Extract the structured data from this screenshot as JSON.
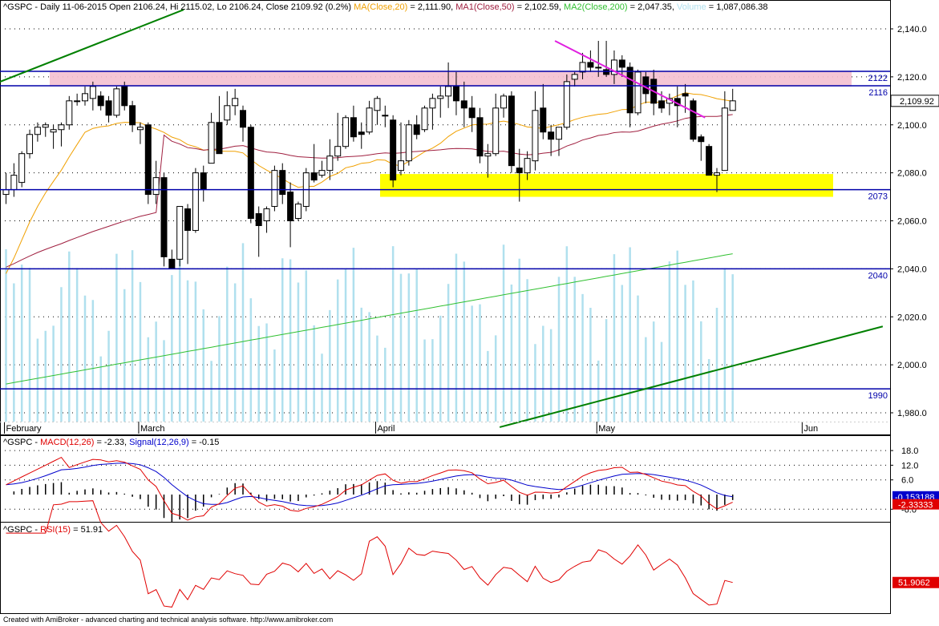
{
  "main_header": {
    "prefix": "^GSPC - Daily 11-06-2015 Open 2106.24, Hi 2115.02, Lo 2106.24, Close 2109.92 (0.2%)",
    "ma20": "MA(Close,20)",
    "ma20_val": "= 2,111.90,",
    "ma50": "MA1(Close,50)",
    "ma50_val": "= 2,102.59,",
    "ma200": "MA2(Close,200)",
    "ma200_val": "= 2,047.35,",
    "volume": "Volume",
    "volume_val": "= 1,087,086.38"
  },
  "macd_header": {
    "prefix": "^GSPC - ",
    "macd": "MACD(12,26)",
    "macd_val": "= -2.33,",
    "signal": "Signal(12,26,9)",
    "signal_val": "= -0.15"
  },
  "rsi_header": {
    "prefix": "^GSPC - ",
    "rsi": "RSI(15)",
    "rsi_val": "= 51.91"
  },
  "footer": "Created with AmiBroker - advanced charting and technical analysis software. http://www.amibroker.com",
  "colors": {
    "ma20": "#f0a000",
    "ma50": "#a02040",
    "ma200": "#30c030",
    "volume": "#b0e0ee",
    "macd": "#e00000",
    "signal": "#0000cc",
    "rsi": "#e00000",
    "level": "#0000aa",
    "trend": "#008000",
    "downtrend": "#e020e0",
    "resistance_zone": "#f4c0d0",
    "support_zone": "#ffff00"
  },
  "chart_data": [
    {
      "type": "candlestick",
      "title": "^GSPC - Daily 11-06-2015",
      "ylim": [
        1970,
        2150
      ],
      "yticks": [
        "2,140.0",
        "2,120.0",
        "2,100.0",
        "2,080.0",
        "2,060.0",
        "2,040.0",
        "2,020.0",
        "2,000.0",
        "1,980.0"
      ],
      "last_price_label": "2,109.92",
      "x_month_labels": [
        {
          "label": "February",
          "index": 0
        },
        {
          "label": "March",
          "index": 17
        },
        {
          "label": "April",
          "index": 47
        },
        {
          "label": "May",
          "index": 75
        },
        {
          "label": "Jun",
          "index": 101
        }
      ],
      "candles": [
        {
          "o": 2071,
          "h": 2080,
          "l": 2067,
          "c": 2073
        },
        {
          "o": 2073,
          "h": 2084,
          "l": 2070,
          "c": 2079
        },
        {
          "o": 2076,
          "h": 2089,
          "l": 2074,
          "c": 2088
        },
        {
          "o": 2088,
          "h": 2098,
          "l": 2086,
          "c": 2096
        },
        {
          "o": 2096,
          "h": 2101,
          "l": 2093,
          "c": 2099
        },
        {
          "o": 2099,
          "h": 2101,
          "l": 2095,
          "c": 2100
        },
        {
          "o": 2097,
          "h": 2100,
          "l": 2090,
          "c": 2098
        },
        {
          "o": 2098,
          "h": 2101,
          "l": 2091,
          "c": 2100
        },
        {
          "o": 2100,
          "h": 2112,
          "l": 2098,
          "c": 2110
        },
        {
          "o": 2110,
          "h": 2113,
          "l": 2108,
          "c": 2110
        },
        {
          "o": 2110,
          "h": 2116,
          "l": 2108,
          "c": 2113
        },
        {
          "o": 2111,
          "h": 2118,
          "l": 2106,
          "c": 2116
        },
        {
          "o": 2112,
          "h": 2114,
          "l": 2106,
          "c": 2108
        },
        {
          "o": 2110,
          "h": 2112,
          "l": 2101,
          "c": 2104
        },
        {
          "o": 2104,
          "h": 2116,
          "l": 2103,
          "c": 2115
        },
        {
          "o": 2116,
          "h": 2118,
          "l": 2106,
          "c": 2108
        },
        {
          "o": 2108,
          "h": 2110,
          "l": 2097,
          "c": 2100
        },
        {
          "o": 2098,
          "h": 2101,
          "l": 2092,
          "c": 2099
        },
        {
          "o": 2100,
          "h": 2101,
          "l": 2067,
          "c": 2071
        },
        {
          "o": 2071,
          "h": 2085,
          "l": 2067,
          "c": 2078
        },
        {
          "o": 2078,
          "h": 2080,
          "l": 2041,
          "c": 2045
        },
        {
          "o": 2044,
          "h": 2048,
          "l": 2040,
          "c": 2040
        },
        {
          "o": 2044,
          "h": 2066,
          "l": 2041,
          "c": 2066
        },
        {
          "o": 2065,
          "h": 2067,
          "l": 2042,
          "c": 2056
        },
        {
          "o": 2056,
          "h": 2082,
          "l": 2055,
          "c": 2080
        },
        {
          "o": 2080,
          "h": 2083,
          "l": 2068,
          "c": 2073
        },
        {
          "o": 2084,
          "h": 2105,
          "l": 2084,
          "c": 2101
        },
        {
          "o": 2101,
          "h": 2112,
          "l": 2088,
          "c": 2088
        },
        {
          "o": 2102,
          "h": 2114,
          "l": 2100,
          "c": 2108
        },
        {
          "o": 2108,
          "h": 2115,
          "l": 2104,
          "c": 2111
        },
        {
          "o": 2106,
          "h": 2108,
          "l": 2093,
          "c": 2099
        },
        {
          "o": 2099,
          "h": 2100,
          "l": 2059,
          "c": 2061
        },
        {
          "o": 2063,
          "h": 2066,
          "l": 2045,
          "c": 2058
        },
        {
          "o": 2060,
          "h": 2066,
          "l": 2055,
          "c": 2065
        },
        {
          "o": 2066,
          "h": 2083,
          "l": 2064,
          "c": 2081
        },
        {
          "o": 2081,
          "h": 2084,
          "l": 2067,
          "c": 2071
        },
        {
          "o": 2072,
          "h": 2076,
          "l": 2049,
          "c": 2060
        },
        {
          "o": 2061,
          "h": 2068,
          "l": 2060,
          "c": 2067
        },
        {
          "o": 2066,
          "h": 2082,
          "l": 2064,
          "c": 2080
        },
        {
          "o": 2080,
          "h": 2092,
          "l": 2076,
          "c": 2077
        },
        {
          "o": 2079,
          "h": 2085,
          "l": 2078,
          "c": 2081
        },
        {
          "o": 2081,
          "h": 2094,
          "l": 2077,
          "c": 2087
        },
        {
          "o": 2087,
          "h": 2105,
          "l": 2085,
          "c": 2091
        },
        {
          "o": 2091,
          "h": 2104,
          "l": 2090,
          "c": 2103
        },
        {
          "o": 2103,
          "h": 2108,
          "l": 2093,
          "c": 2095
        },
        {
          "o": 2097,
          "h": 2101,
          "l": 2090,
          "c": 2096
        },
        {
          "o": 2097,
          "h": 2110,
          "l": 2096,
          "c": 2107
        },
        {
          "o": 2106,
          "h": 2112,
          "l": 2100,
          "c": 2111
        },
        {
          "o": 2104,
          "h": 2108,
          "l": 2099,
          "c": 2104
        },
        {
          "o": 2102,
          "h": 2104,
          "l": 2074,
          "c": 2077
        },
        {
          "o": 2081,
          "h": 2101,
          "l": 2079,
          "c": 2085
        },
        {
          "o": 2085,
          "h": 2102,
          "l": 2083,
          "c": 2100
        },
        {
          "o": 2100,
          "h": 2104,
          "l": 2094,
          "c": 2096
        },
        {
          "o": 2098,
          "h": 2108,
          "l": 2097,
          "c": 2107
        },
        {
          "o": 2107,
          "h": 2113,
          "l": 2098,
          "c": 2111
        },
        {
          "o": 2111,
          "h": 2116,
          "l": 2103,
          "c": 2112
        },
        {
          "o": 2112,
          "h": 2126,
          "l": 2107,
          "c": 2116
        },
        {
          "o": 2116,
          "h": 2122,
          "l": 2104,
          "c": 2110
        },
        {
          "o": 2110,
          "h": 2118,
          "l": 2099,
          "c": 2107
        },
        {
          "o": 2107,
          "h": 2112,
          "l": 2097,
          "c": 2103
        },
        {
          "o": 2103,
          "h": 2107,
          "l": 2084,
          "c": 2087
        },
        {
          "o": 2087,
          "h": 2092,
          "l": 2078,
          "c": 2088
        },
        {
          "o": 2088,
          "h": 2113,
          "l": 2087,
          "c": 2107
        },
        {
          "o": 2107,
          "h": 2113,
          "l": 2103,
          "c": 2112
        },
        {
          "o": 2112,
          "h": 2114,
          "l": 2080,
          "c": 2083
        },
        {
          "o": 2082,
          "h": 2090,
          "l": 2068,
          "c": 2080
        },
        {
          "o": 2080,
          "h": 2089,
          "l": 2077,
          "c": 2086
        },
        {
          "o": 2085,
          "h": 2114,
          "l": 2081,
          "c": 2106
        },
        {
          "o": 2107,
          "h": 2117,
          "l": 2094,
          "c": 2097
        },
        {
          "o": 2097,
          "h": 2100,
          "l": 2087,
          "c": 2094
        },
        {
          "o": 2094,
          "h": 2099,
          "l": 2087,
          "c": 2099
        },
        {
          "o": 2099,
          "h": 2121,
          "l": 2098,
          "c": 2118
        },
        {
          "o": 2119,
          "h": 2122,
          "l": 2116,
          "c": 2121
        },
        {
          "o": 2122,
          "h": 2130,
          "l": 2119,
          "c": 2126
        },
        {
          "o": 2126,
          "h": 2131,
          "l": 2122,
          "c": 2124
        },
        {
          "o": 2124,
          "h": 2135,
          "l": 2120,
          "c": 2124
        },
        {
          "o": 2123,
          "h": 2135,
          "l": 2120,
          "c": 2121
        },
        {
          "o": 2121,
          "h": 2131,
          "l": 2117,
          "c": 2127
        },
        {
          "o": 2127,
          "h": 2129,
          "l": 2120,
          "c": 2124
        },
        {
          "o": 2124,
          "h": 2126,
          "l": 2099,
          "c": 2105
        },
        {
          "o": 2105,
          "h": 2123,
          "l": 2104,
          "c": 2122
        },
        {
          "o": 2120,
          "h": 2122,
          "l": 2109,
          "c": 2113
        },
        {
          "o": 2119,
          "h": 2123,
          "l": 2104,
          "c": 2109
        },
        {
          "o": 2110,
          "h": 2114,
          "l": 2105,
          "c": 2107
        },
        {
          "o": 2109,
          "h": 2113,
          "l": 2104,
          "c": 2111
        },
        {
          "o": 2111,
          "h": 2116,
          "l": 2099,
          "c": 2108
        },
        {
          "o": 2113,
          "h": 2117,
          "l": 2105,
          "c": 2112
        },
        {
          "o": 2110,
          "h": 2111,
          "l": 2093,
          "c": 2094
        },
        {
          "o": 2095,
          "h": 2096,
          "l": 2085,
          "c": 2093
        },
        {
          "o": 2091,
          "h": 2092,
          "l": 2079,
          "c": 2079
        },
        {
          "o": 2079,
          "h": 2082,
          "l": 2072,
          "c": 2080
        },
        {
          "o": 2081,
          "h": 2114,
          "l": 2081,
          "c": 2107
        },
        {
          "o": 2106,
          "h": 2115,
          "l": 2106,
          "c": 2110
        }
      ],
      "horizontal_levels": [
        {
          "label": "2122",
          "value": 2122.3
        },
        {
          "label": "2116",
          "value": 2116.3
        },
        {
          "label": "2073",
          "value": 2073
        },
        {
          "label": "2040",
          "value": 2040
        },
        {
          "label": "1990",
          "value": 1990
        }
      ],
      "zones": [
        {
          "name": "resistance",
          "from": 2116,
          "to": 2122.5
        },
        {
          "name": "support",
          "from": 2070,
          "to": 2079.5
        }
      ],
      "trendlines": [
        {
          "name": "long-uptrend-upper",
          "points": [
            [
              -1.5,
              2117
            ],
            [
              22.5,
              2148
            ]
          ]
        },
        {
          "name": "long-uptrend-lower",
          "points": [
            [
              62.5,
              1974
            ],
            [
              111.0,
              2016
            ]
          ]
        },
        {
          "name": "downtrend",
          "points": [
            [
              69.5,
              2135
            ],
            [
              88.5,
              2103
            ]
          ]
        }
      ]
    },
    {
      "type": "line",
      "title": "^GSPC - MACD(12,26) = -2.33, Signal(12,26,9) = -0.15",
      "ylim": [
        -9,
        21
      ],
      "yticks": [
        "18.0",
        "12.0",
        "6.0",
        "-6.0"
      ],
      "last_labels": {
        "signal": "-0.153188",
        "macd": "-2.33333"
      }
    },
    {
      "type": "line",
      "title": "^GSPC - RSI(15) = 51.91",
      "ylim": [
        25,
        80
      ],
      "last_label": "51.9062"
    }
  ]
}
